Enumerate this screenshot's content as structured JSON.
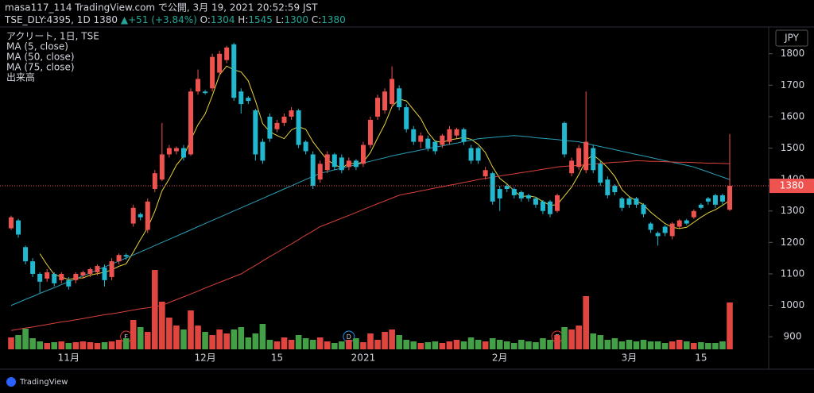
{
  "chart_data": {
    "type": "candlestick",
    "title": "masa117_114 TradingView.com で公開, 3月 19, 2021 20:52:59 JST",
    "symbol": "TSE_DLY:4395, 1D",
    "change": "+51 (+3.84%)",
    "ohlc_labels": [
      "O:",
      "H:",
      "L:",
      "C:"
    ],
    "legend_title": "アクリート, 1日, TSE",
    "currency": "JPY",
    "brand": "TradingView",
    "categories": [
      null,
      null,
      null,
      null,
      null,
      null,
      null,
      null,
      "11月",
      null,
      null,
      null,
      null,
      null,
      null,
      null,
      null,
      null,
      null,
      null,
      null,
      null,
      null,
      null,
      null,
      null,
      null,
      "12月",
      null,
      null,
      null,
      null,
      null,
      null,
      null,
      null,
      null,
      "15",
      null,
      null,
      null,
      null,
      null,
      null,
      null,
      null,
      null,
      null,
      null,
      "2021",
      null,
      null,
      null,
      null,
      null,
      null,
      null,
      null,
      null,
      null,
      null,
      null,
      null,
      null,
      null,
      null,
      null,
      null,
      "2月",
      null,
      null,
      null,
      null,
      null,
      null,
      null,
      null,
      null,
      null,
      null,
      null,
      null,
      null,
      null,
      null,
      null,
      "3月",
      null,
      null,
      null,
      null,
      null,
      null,
      null,
      null,
      null,
      "15",
      null,
      null,
      null,
      null
    ],
    "events": [
      null,
      null,
      null,
      null,
      null,
      null,
      null,
      null,
      null,
      null,
      null,
      null,
      null,
      null,
      null,
      null,
      "E",
      null,
      null,
      null,
      null,
      null,
      null,
      null,
      null,
      null,
      null,
      null,
      null,
      null,
      null,
      null,
      null,
      null,
      null,
      null,
      null,
      null,
      null,
      null,
      null,
      null,
      null,
      null,
      null,
      null,
      null,
      "D",
      null,
      null,
      null,
      null,
      null,
      null,
      null,
      null,
      null,
      null,
      null,
      null,
      null,
      null,
      null,
      null,
      null,
      null,
      null,
      null,
      null,
      null,
      null,
      null,
      null,
      null,
      null,
      null,
      "E",
      null,
      null,
      null,
      null,
      null,
      null,
      null,
      null,
      null,
      null,
      null,
      null,
      null,
      null,
      null,
      null,
      null,
      null,
      null,
      null,
      null,
      null,
      null,
      null
    ],
    "open": [
      1245,
      1270,
      1185,
      1140,
      1100,
      1085,
      1100,
      1080,
      1080,
      1080,
      1095,
      1100,
      1105,
      1120,
      1090,
      1140,
      1160,
      1260,
      1290,
      1240,
      1370,
      1400,
      1480,
      1490,
      1500,
      1480,
      1680,
      1680,
      1690,
      1740,
      1780,
      1830,
      1680,
      1660,
      1620,
      1520,
      1600,
      1560,
      1580,
      1600,
      1620,
      1520,
      1480,
      1400,
      1430,
      1480,
      1470,
      1440,
      1460,
      1450,
      1510,
      1600,
      1620,
      1640,
      1690,
      1630,
      1560,
      1520,
      1530,
      1520,
      1510,
      1520,
      1540,
      1560,
      1500,
      1500,
      1410,
      1420,
      1370,
      1380,
      1370,
      1360,
      1350,
      1340,
      1330,
      1330,
      1300,
      1580,
      1420,
      1440,
      1430,
      1500,
      1450,
      1400,
      1380,
      1340,
      1340,
      1340,
      1320,
      1260,
      1230,
      1250,
      1220,
      1250,
      1270,
      1280,
      1320,
      1340,
      1350,
      1350,
      1304
    ],
    "high": [
      1285,
      1275,
      1190,
      1150,
      1105,
      1115,
      1105,
      1105,
      1090,
      1105,
      1110,
      1120,
      1130,
      1130,
      1150,
      1165,
      1165,
      1320,
      1295,
      1340,
      1430,
      1580,
      1510,
      1505,
      1510,
      1690,
      1750,
      1685,
      1800,
      1810,
      1825,
      1835,
      1690,
      1665,
      1625,
      1530,
      1610,
      1590,
      1610,
      1630,
      1625,
      1525,
      1490,
      1460,
      1490,
      1485,
      1480,
      1470,
      1465,
      1520,
      1600,
      1670,
      1690,
      1760,
      1700,
      1640,
      1570,
      1550,
      1540,
      1525,
      1545,
      1570,
      1565,
      1565,
      1510,
      1505,
      1440,
      1425,
      1380,
      1385,
      1375,
      1365,
      1355,
      1345,
      1335,
      1335,
      1355,
      1585,
      1470,
      1510,
      1680,
      1510,
      1460,
      1410,
      1385,
      1345,
      1345,
      1345,
      1325,
      1265,
      1235,
      1255,
      1265,
      1275,
      1275,
      1305,
      1325,
      1345,
      1355,
      1355,
      1545
    ],
    "low": [
      1240,
      1215,
      1130,
      1090,
      1040,
      1075,
      1060,
      1070,
      1050,
      1070,
      1085,
      1090,
      1095,
      1060,
      1080,
      1130,
      1145,
      1250,
      1270,
      1230,
      1360,
      1395,
      1470,
      1480,
      1460,
      1475,
      1670,
      1670,
      1680,
      1730,
      1770,
      1650,
      1610,
      1640,
      1460,
      1450,
      1520,
      1550,
      1570,
      1590,
      1500,
      1480,
      1370,
      1390,
      1420,
      1430,
      1420,
      1430,
      1430,
      1440,
      1500,
      1590,
      1610,
      1630,
      1620,
      1550,
      1510,
      1500,
      1490,
      1480,
      1500,
      1510,
      1530,
      1510,
      1450,
      1450,
      1400,
      1320,
      1300,
      1360,
      1340,
      1330,
      1330,
      1310,
      1290,
      1280,
      1295,
      1470,
      1410,
      1430,
      1420,
      1420,
      1380,
      1340,
      1350,
      1300,
      1310,
      1310,
      1280,
      1230,
      1190,
      1220,
      1210,
      1245,
      1255,
      1275,
      1305,
      1320,
      1310,
      1320,
      1300
    ],
    "close": [
      1280,
      1225,
      1140,
      1100,
      1075,
      1105,
      1070,
      1100,
      1060,
      1100,
      1105,
      1115,
      1125,
      1080,
      1140,
      1160,
      1155,
      1310,
      1280,
      1330,
      1420,
      1480,
      1500,
      1500,
      1470,
      1680,
      1720,
      1675,
      1790,
      1800,
      1820,
      1660,
      1640,
      1650,
      1480,
      1460,
      1530,
      1580,
      1600,
      1620,
      1510,
      1490,
      1380,
      1450,
      1480,
      1440,
      1430,
      1460,
      1440,
      1510,
      1590,
      1660,
      1680,
      1720,
      1630,
      1560,
      1520,
      1540,
      1500,
      1490,
      1540,
      1560,
      1560,
      1520,
      1460,
      1460,
      1430,
      1330,
      1340,
      1370,
      1350,
      1340,
      1340,
      1320,
      1300,
      1290,
      1350,
      1480,
      1460,
      1500,
      1520,
      1430,
      1390,
      1350,
      1360,
      1310,
      1320,
      1320,
      1290,
      1240,
      1220,
      1230,
      1260,
      1270,
      1260,
      1300,
      1310,
      1330,
      1320,
      1330,
      1380
    ],
    "up_color": "#ef5350",
    "down_color": "#22b8cf",
    "volume_name": "出来高",
    "volume": [
      15,
      18,
      26,
      14,
      10,
      8,
      9,
      10,
      8,
      9,
      10,
      9,
      8,
      9,
      10,
      12,
      14,
      37,
      28,
      22,
      100,
      60,
      40,
      30,
      25,
      49,
      30,
      22,
      18,
      25,
      20,
      25,
      28,
      15,
      20,
      32,
      12,
      10,
      15,
      12,
      18,
      14,
      12,
      15,
      10,
      8,
      10,
      12,
      14,
      9,
      20,
      12,
      22,
      25,
      18,
      12,
      10,
      8,
      9,
      10,
      8,
      10,
      12,
      10,
      15,
      12,
      10,
      14,
      12,
      10,
      8,
      12,
      10,
      9,
      14,
      12,
      18,
      28,
      25,
      30,
      67,
      20,
      18,
      12,
      14,
      10,
      12,
      10,
      12,
      10,
      10,
      8,
      10,
      12,
      10,
      8,
      9,
      8,
      8,
      10,
      59
    ],
    "volume_up_color": "#e0453f",
    "volume_down_color": "#43a047",
    "series": [
      {
        "name": "MA (5, close)",
        "color": "#e8d43c",
        "values": [
          null,
          null,
          null,
          null,
          1164,
          1129,
          1098,
          1090,
          1082,
          1087,
          1087,
          1096,
          1101,
          1105,
          1113,
          1124,
          1132,
          1169,
          1209,
          1247,
          1299,
          1364,
          1402,
          1446,
          1474,
          1526,
          1574,
          1609,
          1667,
          1733,
          1761,
          1749,
          1742,
          1714,
          1650,
          1578,
          1552,
          1540,
          1530,
          1558,
          1568,
          1560,
          1520,
          1490,
          1462,
          1448,
          1436,
          1452,
          1450,
          1456,
          1486,
          1532,
          1576,
          1632,
          1656,
          1650,
          1622,
          1594,
          1550,
          1522,
          1518,
          1526,
          1530,
          1534,
          1528,
          1512,
          1486,
          1440,
          1404,
          1386,
          1364,
          1346,
          1348,
          1344,
          1330,
          1318,
          1320,
          1348,
          1376,
          1416,
          1462,
          1478,
          1460,
          1438,
          1410,
          1368,
          1346,
          1332,
          1320,
          1296,
          1278,
          1260,
          1248,
          1244,
          1248,
          1264,
          1280,
          1294,
          1304,
          1318,
          1334
        ]
      },
      {
        "name": "MA (50, close)",
        "color": "#2a9fb8",
        "values": [
          1000,
          1009,
          1019,
          1028,
          1038,
          1047,
          1056,
          1066,
          1075,
          1084,
          1094,
          1103,
          1113,
          1122,
          1131,
          1141,
          1150,
          1160,
          1170,
          1180,
          1190,
          1200,
          1210,
          1220,
          1230,
          1240,
          1250,
          1260,
          1270,
          1280,
          1290,
          1300,
          1310,
          1320,
          1330,
          1340,
          1350,
          1360,
          1370,
          1380,
          1390,
          1400,
          1410,
          1420,
          1425,
          1431,
          1436,
          1442,
          1447,
          1453,
          1458,
          1464,
          1469,
          1475,
          1480,
          1485,
          1489,
          1494,
          1498,
          1503,
          1507,
          1512,
          1516,
          1521,
          1525,
          1530,
          1532,
          1534,
          1536,
          1538,
          1540,
          1538,
          1536,
          1533,
          1531,
          1529,
          1527,
          1524,
          1522,
          1520,
          1515,
          1510,
          1505,
          1500,
          1495,
          1490,
          1485,
          1480,
          1475,
          1470,
          1465,
          1460,
          1455,
          1450,
          1445,
          1440,
          1432,
          1424,
          1416,
          1408,
          1400
        ]
      },
      {
        "name": "MA (75, close)",
        "color": "#d8413a",
        "values": [
          920,
          924,
          928,
          931,
          935,
          939,
          943,
          947,
          950,
          954,
          958,
          962,
          966,
          970,
          973,
          977,
          981,
          985,
          989,
          992,
          996,
          1000,
          1009,
          1018,
          1027,
          1036,
          1045,
          1055,
          1064,
          1073,
          1082,
          1091,
          1100,
          1114,
          1127,
          1141,
          1155,
          1168,
          1182,
          1195,
          1209,
          1223,
          1236,
          1250,
          1259,
          1268,
          1277,
          1286,
          1295,
          1305,
          1314,
          1323,
          1332,
          1341,
          1350,
          1355,
          1359,
          1364,
          1368,
          1373,
          1377,
          1382,
          1386,
          1391,
          1395,
          1400,
          1404,
          1407,
          1411,
          1415,
          1418,
          1422,
          1425,
          1429,
          1433,
          1436,
          1440,
          1442,
          1444,
          1445,
          1447,
          1449,
          1451,
          1453,
          1455,
          1456,
          1458,
          1460,
          1459,
          1458,
          1458,
          1457,
          1456,
          1455,
          1455,
          1454,
          1453,
          1452,
          1452,
          1451,
          1450
        ]
      }
    ],
    "ylim": [
      860,
      1870
    ],
    "yticks": [
      900,
      1000,
      1100,
      1200,
      1300,
      1400,
      1500,
      1600,
      1700,
      1800
    ]
  }
}
